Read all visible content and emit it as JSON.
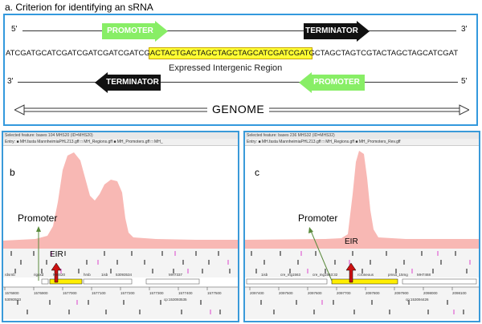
{
  "panel_a": {
    "title": "a. Criterion for identifying an sRNA",
    "top_strand": {
      "left_end": "5'",
      "right_end": "3'",
      "promoter_label": "PROMOTER",
      "terminator_label": "TERMINATOR"
    },
    "sequence": "ATCGATGCATCGATCGATCGATCGATCGACTACTGACTAGCTAGCTAGCATCGATCGATGCTAGCTAGTCGTACTAGCTAGCATCGAT",
    "eir_label": "Expressed Intergenic Region",
    "bottom_strand": {
      "left_end": "3'",
      "right_end": "5'",
      "promoter_label": "PROMOTER",
      "terminator_label": "TERMINATOR"
    },
    "genome_label": "GENOME"
  },
  "panel_b": {
    "letter": "b",
    "toolbar_text": "Selected feature: bases 104 MHS20 (ID=MHS20)",
    "toolbar2_text": "Entry: ■ MH.fasta  MannheimiaPHL213.gff  □ MH_Regions.gff  ■ MH_Promoters.gff  □ MH_",
    "promoter_label": "Promoter",
    "eir_label": "EIR",
    "coord_labels": [
      "1576800",
      "1576900",
      "1577000",
      "1577100",
      "1577200",
      "1577300",
      "1577400",
      "1577500"
    ],
    "gene_labels": [
      "rdsrnb",
      "rigoxd",
      "MHS20",
      "hrsb",
      "1isb",
      "53093534",
      "MH7337"
    ],
    "bottom_labels": [
      "53093533",
      "cp:153093535"
    ]
  },
  "panel_c": {
    "letter": "c",
    "toolbar_text": "Selected feature: bases 236 MHS32 (ID=MHS32)",
    "toolbar2_text": "Entry: ■ MH.fasta  MannheimiaPHL213.gff  □ MH_Regions.gff  ■ MH_Promoters_Rev.gff",
    "promoter_label": "Promoter",
    "eir_label": "EIR",
    "coord_labels": [
      "2097400",
      "2097500",
      "2097600",
      "2097700",
      "2097800",
      "2097900",
      "2098000",
      "2098100"
    ],
    "gene_labels": [
      "1isb",
      "cre_mg1563",
      "cre_mg1563:32",
      "rcroneous",
      "pmsa_15mg",
      "MH7468"
    ],
    "bottom_labels": [
      "cp:153094426"
    ]
  },
  "colors": {
    "promoter_green": "#88ee66",
    "terminator_black": "#111111",
    "eir_yellow": "#ffff33",
    "coverage_pink": "#f8b8b4",
    "frame_blue": "#3399dd",
    "eir_arrow_red": "#cc1111",
    "stop_codon_magenta": "#dd44cc"
  }
}
